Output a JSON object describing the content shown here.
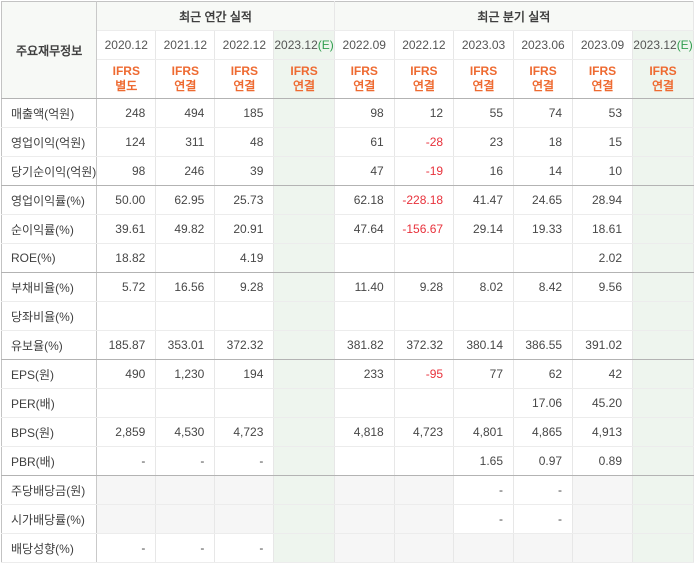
{
  "table": {
    "corner_label": "주요재무정보",
    "sections": [
      {
        "title": "최근 연간 실적",
        "columns": [
          {
            "period": "2020.12",
            "mark": "",
            "standard": "IFRS",
            "scope": "별도",
            "estimate": false
          },
          {
            "period": "2021.12",
            "mark": "",
            "standard": "IFRS",
            "scope": "연결",
            "estimate": false
          },
          {
            "period": "2022.12",
            "mark": "",
            "standard": "IFRS",
            "scope": "연결",
            "estimate": false
          },
          {
            "period": "2023.12",
            "mark": "(E)",
            "standard": "IFRS",
            "scope": "연결",
            "estimate": true
          }
        ]
      },
      {
        "title": "최근 분기 실적",
        "columns": [
          {
            "period": "2022.09",
            "mark": "",
            "standard": "IFRS",
            "scope": "연결",
            "estimate": false
          },
          {
            "period": "2022.12",
            "mark": "",
            "standard": "IFRS",
            "scope": "연결",
            "estimate": false
          },
          {
            "period": "2023.03",
            "mark": "",
            "standard": "IFRS",
            "scope": "연결",
            "estimate": false
          },
          {
            "period": "2023.06",
            "mark": "",
            "standard": "IFRS",
            "scope": "연결",
            "estimate": false
          },
          {
            "period": "2023.09",
            "mark": "",
            "standard": "IFRS",
            "scope": "연결",
            "estimate": false
          },
          {
            "period": "2023.12",
            "mark": "(E)",
            "standard": "IFRS",
            "scope": "연결",
            "estimate": true
          }
        ]
      }
    ],
    "rows": [
      {
        "label": "매출액(억원)",
        "annual": [
          "248",
          "494",
          "185",
          ""
        ],
        "quarterly": [
          "98",
          "12",
          "55",
          "74",
          "53",
          ""
        ],
        "group_end": false,
        "dividend_shading": false
      },
      {
        "label": "영업이익(억원)",
        "annual": [
          "124",
          "311",
          "48",
          ""
        ],
        "quarterly": [
          "61",
          "-28",
          "23",
          "18",
          "15",
          ""
        ],
        "group_end": false,
        "dividend_shading": false
      },
      {
        "label": "당기순이익(억원)",
        "annual": [
          "98",
          "246",
          "39",
          ""
        ],
        "quarterly": [
          "47",
          "-19",
          "16",
          "14",
          "10",
          ""
        ],
        "group_end": true,
        "dividend_shading": false
      },
      {
        "label": "영업이익률(%)",
        "annual": [
          "50.00",
          "62.95",
          "25.73",
          ""
        ],
        "quarterly": [
          "62.18",
          "-228.18",
          "41.47",
          "24.65",
          "28.94",
          ""
        ],
        "group_end": false,
        "dividend_shading": false
      },
      {
        "label": "순이익률(%)",
        "annual": [
          "39.61",
          "49.82",
          "20.91",
          ""
        ],
        "quarterly": [
          "47.64",
          "-156.67",
          "29.14",
          "19.33",
          "18.61",
          ""
        ],
        "group_end": false,
        "dividend_shading": false
      },
      {
        "label": "ROE(%)",
        "annual": [
          "18.82",
          "",
          "4.19",
          ""
        ],
        "quarterly": [
          "",
          "",
          "",
          "",
          "2.02",
          ""
        ],
        "group_end": true,
        "dividend_shading": false
      },
      {
        "label": "부채비율(%)",
        "annual": [
          "5.72",
          "16.56",
          "9.28",
          ""
        ],
        "quarterly": [
          "11.40",
          "9.28",
          "8.02",
          "8.42",
          "9.56",
          ""
        ],
        "group_end": false,
        "dividend_shading": false
      },
      {
        "label": "당좌비율(%)",
        "annual": [
          "",
          "",
          "",
          ""
        ],
        "quarterly": [
          "",
          "",
          "",
          "",
          "",
          ""
        ],
        "group_end": false,
        "dividend_shading": false
      },
      {
        "label": "유보율(%)",
        "annual": [
          "185.87",
          "353.01",
          "372.32",
          ""
        ],
        "quarterly": [
          "381.82",
          "372.32",
          "380.14",
          "386.55",
          "391.02",
          ""
        ],
        "group_end": true,
        "dividend_shading": false
      },
      {
        "label": "EPS(원)",
        "annual": [
          "490",
          "1,230",
          "194",
          ""
        ],
        "quarterly": [
          "233",
          "-95",
          "77",
          "62",
          "42",
          ""
        ],
        "group_end": false,
        "dividend_shading": false
      },
      {
        "label": "PER(배)",
        "annual": [
          "",
          "",
          "",
          ""
        ],
        "quarterly": [
          "",
          "",
          "",
          "17.06",
          "45.20",
          ""
        ],
        "group_end": false,
        "dividend_shading": false
      },
      {
        "label": "BPS(원)",
        "annual": [
          "2,859",
          "4,530",
          "4,723",
          ""
        ],
        "quarterly": [
          "4,818",
          "4,723",
          "4,801",
          "4,865",
          "4,913",
          ""
        ],
        "group_end": false,
        "dividend_shading": false
      },
      {
        "label": "PBR(배)",
        "annual": [
          "-",
          "-",
          "-",
          ""
        ],
        "quarterly": [
          "",
          "",
          "1.65",
          "0.97",
          "0.89",
          ""
        ],
        "group_end": true,
        "dividend_shading": false
      },
      {
        "label": "주당배당금(원)",
        "annual": [
          "",
          "",
          "",
          ""
        ],
        "quarterly": [
          "",
          "",
          "-",
          "-",
          "",
          ""
        ],
        "group_end": false,
        "dividend_shading": true
      },
      {
        "label": "시가배당률(%)",
        "annual": [
          "",
          "",
          "",
          ""
        ],
        "quarterly": [
          "",
          "",
          "-",
          "-",
          "",
          ""
        ],
        "group_end": false,
        "dividend_shading": true
      },
      {
        "label": "배당성향(%)",
        "annual": [
          "-",
          "-",
          "-",
          ""
        ],
        "quarterly": [
          "",
          "",
          "",
          "",
          "",
          ""
        ],
        "group_end": false,
        "dividend_shading": true
      }
    ]
  },
  "colors": {
    "accent_orange": "#ee6a31",
    "negative_red": "#e8323c",
    "estimate_green": "#2f9d4e",
    "estimate_column_bg": "#eef5ee",
    "shaded_cell_bg": "#f6f6f6",
    "header_band_bg": "#f7f9f6"
  }
}
